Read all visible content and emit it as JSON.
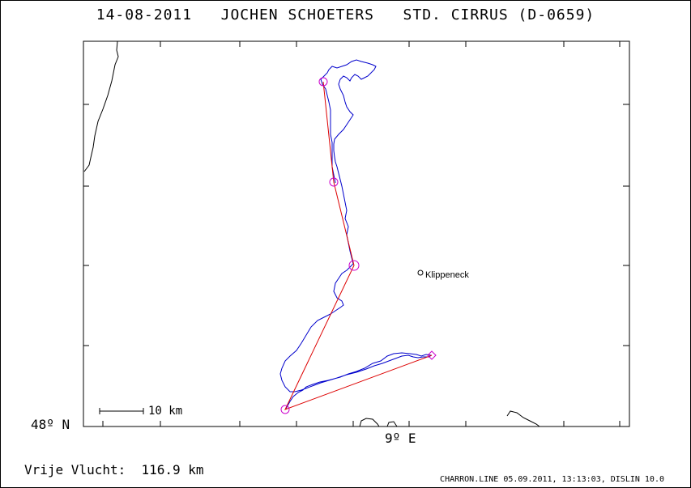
{
  "title": "14-08-2011   JOCHEN SCHOETERS   STD. CIRRUS (D-0659)",
  "map": {
    "lat_label": "48º N",
    "lon_label": "9º E",
    "scale_label": "10 km",
    "place": "Klippeneck"
  },
  "result": {
    "label": "Vrije Vlucht:",
    "distance": "116.9 km"
  },
  "footer": "CHARRON.LINE 05.09.2011, 13:13:03, DISLIN 10.0",
  "colors": {
    "track": "#0000cc",
    "course": "#dd0000",
    "turnpoint": "#cc00cc",
    "frame": "#000000"
  }
}
